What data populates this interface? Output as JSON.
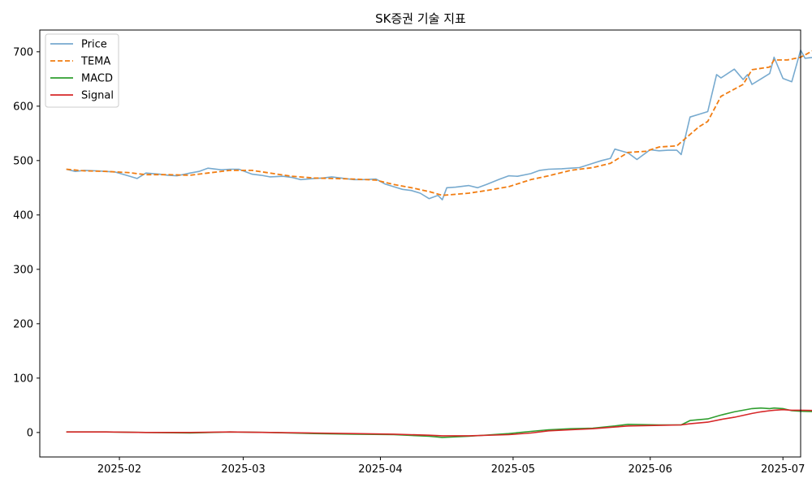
{
  "chart_data": {
    "type": "line",
    "title": "SK증권 기술 지표",
    "xlabel": "",
    "ylabel": "",
    "x_start": "2025-01-20",
    "x_end": "2025-06-30",
    "xlim": [
      "2025-01-14",
      "2025-07-05"
    ],
    "ylim": [
      -45,
      740
    ],
    "y_ticks": [
      0,
      100,
      200,
      300,
      400,
      500,
      600,
      700
    ],
    "x_ticks": [
      {
        "date": "2025-02-01",
        "label": "2025-02"
      },
      {
        "date": "2025-03-01",
        "label": "2025-03"
      },
      {
        "date": "2025-04-01",
        "label": "2025-04"
      },
      {
        "date": "2025-05-01",
        "label": "2025-05"
      },
      {
        "date": "2025-06-01",
        "label": "2025-06"
      },
      {
        "date": "2025-07-01",
        "label": "2025-07"
      }
    ],
    "grid": false,
    "legend_position": "top-left",
    "series": [
      {
        "name": "Price",
        "color": "#77aacf",
        "style": "solid",
        "points": [
          [
            "2025-01-20",
            484
          ],
          [
            "2025-01-22",
            480
          ],
          [
            "2025-01-24",
            482
          ],
          [
            "2025-01-27",
            481
          ],
          [
            "2025-01-29",
            480
          ],
          [
            "2025-01-31",
            479
          ],
          [
            "2025-02-03",
            472
          ],
          [
            "2025-02-05",
            467
          ],
          [
            "2025-02-07",
            477
          ],
          [
            "2025-02-10",
            475
          ],
          [
            "2025-02-12",
            473
          ],
          [
            "2025-02-14",
            472
          ],
          [
            "2025-02-17",
            477
          ],
          [
            "2025-02-19",
            480
          ],
          [
            "2025-02-21",
            486
          ],
          [
            "2025-02-24",
            483
          ],
          [
            "2025-02-26",
            484
          ],
          [
            "2025-02-28",
            484
          ],
          [
            "2025-03-03",
            475
          ],
          [
            "2025-03-05",
            473
          ],
          [
            "2025-03-07",
            470
          ],
          [
            "2025-03-10",
            471
          ],
          [
            "2025-03-12",
            469
          ],
          [
            "2025-03-14",
            465
          ],
          [
            "2025-03-17",
            467
          ],
          [
            "2025-03-19",
            468
          ],
          [
            "2025-03-21",
            470
          ],
          [
            "2025-03-24",
            467
          ],
          [
            "2025-03-26",
            465
          ],
          [
            "2025-03-28",
            465
          ],
          [
            "2025-03-31",
            466
          ],
          [
            "2025-04-02",
            457
          ],
          [
            "2025-04-04",
            452
          ],
          [
            "2025-04-06",
            447
          ],
          [
            "2025-04-08",
            445
          ],
          [
            "2025-04-10",
            440
          ],
          [
            "2025-04-12",
            430
          ],
          [
            "2025-04-14",
            436
          ],
          [
            "2025-04-15",
            428
          ],
          [
            "2025-04-16",
            450
          ],
          [
            "2025-04-18",
            451
          ],
          [
            "2025-04-21",
            454
          ],
          [
            "2025-04-23",
            450
          ],
          [
            "2025-04-25",
            456
          ],
          [
            "2025-04-28",
            466
          ],
          [
            "2025-04-30",
            472
          ],
          [
            "2025-05-02",
            471
          ],
          [
            "2025-05-05",
            476
          ],
          [
            "2025-05-07",
            482
          ],
          [
            "2025-05-09",
            484
          ],
          [
            "2025-05-12",
            485
          ],
          [
            "2025-05-14",
            486
          ],
          [
            "2025-05-16",
            487
          ],
          [
            "2025-05-19",
            495
          ],
          [
            "2025-05-21",
            500
          ],
          [
            "2025-05-23",
            504
          ],
          [
            "2025-05-24",
            521
          ],
          [
            "2025-05-27",
            514
          ],
          [
            "2025-05-29",
            502
          ],
          [
            "2025-06-01",
            520
          ],
          [
            "2025-06-03",
            518
          ],
          [
            "2025-06-05",
            519
          ],
          [
            "2025-06-07",
            519
          ],
          [
            "2025-06-08",
            511
          ],
          [
            "2025-06-10",
            580
          ],
          [
            "2025-06-12",
            585
          ],
          [
            "2025-06-14",
            590
          ],
          [
            "2025-06-16",
            658
          ],
          [
            "2025-06-17",
            652
          ],
          [
            "2025-06-20",
            668
          ],
          [
            "2025-06-22",
            649
          ],
          [
            "2025-06-23",
            658
          ],
          [
            "2025-06-24",
            640
          ],
          [
            "2025-06-26",
            650
          ],
          [
            "2025-06-28",
            660
          ],
          [
            "2025-06-29",
            690
          ],
          [
            "2025-07-01",
            651
          ],
          [
            "2025-07-03",
            645
          ],
          [
            "2025-07-05",
            703
          ],
          [
            "2025-07-06",
            688
          ],
          [
            "2025-07-08",
            690
          ],
          [
            "2025-07-10",
            680
          ]
        ]
      },
      {
        "name": "TEMA",
        "color": "#f17d12",
        "style": "dashed",
        "points": [
          [
            "2025-01-20",
            484
          ],
          [
            "2025-01-24",
            481
          ],
          [
            "2025-01-29",
            480
          ],
          [
            "2025-02-03",
            478
          ],
          [
            "2025-02-07",
            474
          ],
          [
            "2025-02-12",
            474
          ],
          [
            "2025-02-17",
            473
          ],
          [
            "2025-02-21",
            477
          ],
          [
            "2025-02-26",
            482
          ],
          [
            "2025-03-03",
            482
          ],
          [
            "2025-03-07",
            477
          ],
          [
            "2025-03-12",
            471
          ],
          [
            "2025-03-17",
            468
          ],
          [
            "2025-03-21",
            467
          ],
          [
            "2025-03-26",
            466
          ],
          [
            "2025-03-31",
            464
          ],
          [
            "2025-04-04",
            456
          ],
          [
            "2025-04-08",
            450
          ],
          [
            "2025-04-12",
            443
          ],
          [
            "2025-04-15",
            436
          ],
          [
            "2025-04-21",
            440
          ],
          [
            "2025-04-25",
            445
          ],
          [
            "2025-04-30",
            452
          ],
          [
            "2025-05-05",
            465
          ],
          [
            "2025-05-09",
            472
          ],
          [
            "2025-05-14",
            482
          ],
          [
            "2025-05-19",
            487
          ],
          [
            "2025-05-23",
            495
          ],
          [
            "2025-05-27",
            515
          ],
          [
            "2025-05-31",
            517
          ],
          [
            "2025-06-03",
            525
          ],
          [
            "2025-06-07",
            527
          ],
          [
            "2025-06-12",
            562
          ],
          [
            "2025-06-14",
            572
          ],
          [
            "2025-06-17",
            618
          ],
          [
            "2025-06-22",
            640
          ],
          [
            "2025-06-24",
            667
          ],
          [
            "2025-06-28",
            672
          ],
          [
            "2025-06-29",
            685
          ],
          [
            "2025-07-02",
            685
          ],
          [
            "2025-07-05",
            690
          ],
          [
            "2025-07-08",
            703
          ],
          [
            "2025-07-10",
            702
          ]
        ]
      },
      {
        "name": "MACD",
        "color": "#2f9e2f",
        "style": "solid",
        "points": [
          [
            "2025-01-20",
            1
          ],
          [
            "2025-01-29",
            1
          ],
          [
            "2025-02-07",
            0
          ],
          [
            "2025-02-17",
            -1
          ],
          [
            "2025-02-26",
            1
          ],
          [
            "2025-03-07",
            0
          ],
          [
            "2025-03-17",
            -2
          ],
          [
            "2025-03-26",
            -3
          ],
          [
            "2025-04-04",
            -4
          ],
          [
            "2025-04-12",
            -7
          ],
          [
            "2025-04-15",
            -9
          ],
          [
            "2025-04-21",
            -7
          ],
          [
            "2025-04-30",
            -2
          ],
          [
            "2025-05-05",
            2
          ],
          [
            "2025-05-09",
            5
          ],
          [
            "2025-05-14",
            7
          ],
          [
            "2025-05-19",
            8
          ],
          [
            "2025-05-24",
            12
          ],
          [
            "2025-05-27",
            15
          ],
          [
            "2025-06-03",
            14
          ],
          [
            "2025-06-08",
            14
          ],
          [
            "2025-06-10",
            22
          ],
          [
            "2025-06-14",
            25
          ],
          [
            "2025-06-17",
            32
          ],
          [
            "2025-06-20",
            38
          ],
          [
            "2025-06-24",
            44
          ],
          [
            "2025-06-26",
            45
          ],
          [
            "2025-06-28",
            44
          ],
          [
            "2025-06-29",
            45
          ],
          [
            "2025-07-01",
            44
          ],
          [
            "2025-07-03",
            40
          ],
          [
            "2025-07-05",
            39
          ],
          [
            "2025-07-10",
            38
          ]
        ]
      },
      {
        "name": "Signal",
        "color": "#d62728",
        "style": "solid",
        "points": [
          [
            "2025-01-20",
            1
          ],
          [
            "2025-01-29",
            1
          ],
          [
            "2025-02-07",
            0
          ],
          [
            "2025-02-17",
            0
          ],
          [
            "2025-02-26",
            1
          ],
          [
            "2025-03-07",
            0
          ],
          [
            "2025-03-17",
            -1
          ],
          [
            "2025-03-26",
            -2
          ],
          [
            "2025-04-04",
            -3
          ],
          [
            "2025-04-12",
            -5
          ],
          [
            "2025-04-15",
            -6
          ],
          [
            "2025-04-21",
            -6
          ],
          [
            "2025-04-30",
            -4
          ],
          [
            "2025-05-05",
            -1
          ],
          [
            "2025-05-09",
            3
          ],
          [
            "2025-05-14",
            5
          ],
          [
            "2025-05-19",
            7
          ],
          [
            "2025-05-24",
            10
          ],
          [
            "2025-05-27",
            12
          ],
          [
            "2025-06-03",
            13
          ],
          [
            "2025-06-08",
            14
          ],
          [
            "2025-06-10",
            16
          ],
          [
            "2025-06-14",
            19
          ],
          [
            "2025-06-17",
            24
          ],
          [
            "2025-06-20",
            28
          ],
          [
            "2025-06-24",
            35
          ],
          [
            "2025-06-26",
            38
          ],
          [
            "2025-06-28",
            40
          ],
          [
            "2025-06-29",
            41
          ],
          [
            "2025-07-01",
            42
          ],
          [
            "2025-07-03",
            41
          ],
          [
            "2025-07-05",
            41
          ],
          [
            "2025-07-10",
            40
          ]
        ]
      }
    ]
  }
}
